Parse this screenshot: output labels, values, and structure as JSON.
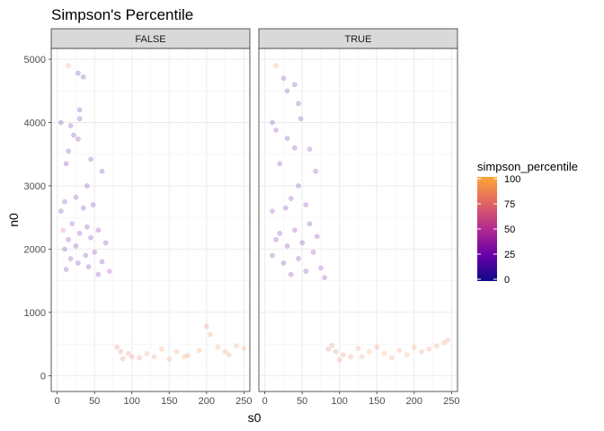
{
  "chart_data": {
    "type": "scatter",
    "title": "Simpson's Percentile",
    "xlabel": "s0",
    "ylabel": "n0",
    "xlim": [
      -8,
      258
    ],
    "ylim": [
      -250,
      5170
    ],
    "x_ticks": [
      0,
      50,
      100,
      150,
      200,
      250
    ],
    "y_ticks": [
      0,
      1000,
      2000,
      3000,
      4000,
      5000
    ],
    "grid": true,
    "facets": [
      "FALSE",
      "TRUE"
    ],
    "color_scale": {
      "title": "simpson_percentile",
      "range": [
        0,
        100
      ],
      "ticks": [
        0,
        25,
        50,
        75,
        100
      ],
      "colors": [
        "#0d0887",
        "#6a00a8",
        "#b12a90",
        "#e16462",
        "#fca636",
        "#f0f921"
      ],
      "position": "right"
    },
    "point_alpha": 0.22,
    "series": [
      {
        "facet": "FALSE",
        "points": [
          [
            5,
            4000,
            10
          ],
          [
            15,
            4900,
            85
          ],
          [
            28,
            4780,
            20
          ],
          [
            35,
            4720,
            15
          ],
          [
            30,
            4200,
            20
          ],
          [
            18,
            3950,
            25
          ],
          [
            30,
            4060,
            20
          ],
          [
            22,
            3800,
            15
          ],
          [
            28,
            3740,
            20
          ],
          [
            15,
            3550,
            20
          ],
          [
            45,
            3420,
            25
          ],
          [
            60,
            3230,
            15
          ],
          [
            12,
            3350,
            20
          ],
          [
            40,
            3000,
            20
          ],
          [
            10,
            2750,
            20
          ],
          [
            25,
            2820,
            20
          ],
          [
            5,
            2600,
            15
          ],
          [
            35,
            2650,
            20
          ],
          [
            48,
            2700,
            15
          ],
          [
            20,
            2400,
            30
          ],
          [
            40,
            2350,
            20
          ],
          [
            55,
            2300,
            25
          ],
          [
            30,
            2250,
            15
          ],
          [
            8,
            2300,
            70
          ],
          [
            45,
            2180,
            20
          ],
          [
            15,
            2150,
            25
          ],
          [
            65,
            2100,
            20
          ],
          [
            25,
            2050,
            15
          ],
          [
            10,
            2000,
            20
          ],
          [
            50,
            1950,
            25
          ],
          [
            38,
            1900,
            20
          ],
          [
            18,
            1850,
            30
          ],
          [
            60,
            1800,
            20
          ],
          [
            28,
            1780,
            15
          ],
          [
            42,
            1720,
            20
          ],
          [
            70,
            1650,
            35
          ],
          [
            12,
            1680,
            20
          ],
          [
            55,
            1600,
            25
          ],
          [
            200,
            780,
            80
          ],
          [
            205,
            650,
            85
          ],
          [
            215,
            450,
            90
          ],
          [
            225,
            380,
            85
          ],
          [
            240,
            470,
            90
          ],
          [
            250,
            430,
            90
          ],
          [
            190,
            400,
            90
          ],
          [
            175,
            320,
            85
          ],
          [
            160,
            380,
            90
          ],
          [
            140,
            420,
            85
          ],
          [
            120,
            350,
            85
          ],
          [
            110,
            280,
            80
          ],
          [
            100,
            300,
            80
          ],
          [
            95,
            350,
            80
          ],
          [
            88,
            270,
            75
          ],
          [
            130,
            300,
            85
          ],
          [
            150,
            260,
            85
          ],
          [
            170,
            300,
            90
          ],
          [
            230,
            330,
            85
          ],
          [
            80,
            450,
            75
          ],
          [
            85,
            380,
            75
          ]
        ]
      },
      {
        "facet": "TRUE",
        "points": [
          [
            15,
            4900,
            85
          ],
          [
            40,
            4600,
            15
          ],
          [
            25,
            4700,
            20
          ],
          [
            30,
            4500,
            20
          ],
          [
            45,
            4300,
            15
          ],
          [
            48,
            4060,
            20
          ],
          [
            10,
            4000,
            20
          ],
          [
            15,
            3880,
            25
          ],
          [
            30,
            3750,
            20
          ],
          [
            40,
            3600,
            20
          ],
          [
            60,
            3580,
            25
          ],
          [
            68,
            3230,
            20
          ],
          [
            20,
            3350,
            20
          ],
          [
            45,
            3000,
            15
          ],
          [
            35,
            2800,
            20
          ],
          [
            55,
            2700,
            25
          ],
          [
            10,
            2600,
            30
          ],
          [
            28,
            2650,
            20
          ],
          [
            60,
            2400,
            20
          ],
          [
            40,
            2300,
            25
          ],
          [
            20,
            2250,
            15
          ],
          [
            70,
            2200,
            20
          ],
          [
            15,
            2150,
            25
          ],
          [
            50,
            2100,
            20
          ],
          [
            30,
            2050,
            15
          ],
          [
            65,
            1950,
            25
          ],
          [
            10,
            1900,
            20
          ],
          [
            45,
            1850,
            20
          ],
          [
            25,
            1780,
            15
          ],
          [
            75,
            1700,
            30
          ],
          [
            55,
            1650,
            20
          ],
          [
            35,
            1600,
            25
          ],
          [
            80,
            1550,
            25
          ],
          [
            230,
            470,
            90
          ],
          [
            245,
            560,
            85
          ],
          [
            240,
            520,
            90
          ],
          [
            220,
            420,
            85
          ],
          [
            200,
            450,
            90
          ],
          [
            180,
            400,
            85
          ],
          [
            160,
            350,
            90
          ],
          [
            150,
            450,
            85
          ],
          [
            140,
            380,
            90
          ],
          [
            125,
            430,
            85
          ],
          [
            115,
            300,
            80
          ],
          [
            105,
            330,
            80
          ],
          [
            100,
            250,
            80
          ],
          [
            95,
            380,
            75
          ],
          [
            130,
            300,
            85
          ],
          [
            170,
            280,
            85
          ],
          [
            190,
            330,
            90
          ],
          [
            210,
            380,
            85
          ],
          [
            90,
            480,
            75
          ],
          [
            85,
            420,
            75
          ]
        ]
      }
    ]
  }
}
